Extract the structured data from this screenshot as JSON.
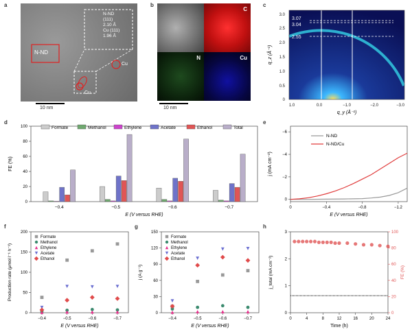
{
  "panel_labels": {
    "a": "a",
    "b": "b",
    "c": "c",
    "d": "d",
    "e": "e",
    "f": "f",
    "g": "g",
    "h": "h"
  },
  "panel_a": {
    "region_label": "N-ND",
    "inset_lines": [
      "N-ND",
      "(111)",
      "2.10 Å",
      "Cu (111)",
      "1.96 Å"
    ],
    "cu_labels": [
      "Cu",
      "Cu"
    ],
    "scale_bar": "10 nm"
  },
  "panel_b": {
    "labels": {
      "c": "C",
      "n": "N",
      "cu": "Cu"
    },
    "scale_bar": "10 nm",
    "colors": {
      "haadf": "#9a9a9a",
      "c": "#d81a1a",
      "n": "#0f2a0f",
      "cu": "#06063a"
    }
  },
  "panel_c": {
    "ring_labels": [
      "3.07",
      "3.04",
      "2.55"
    ],
    "xlabel": "q_y (Å⁻¹)",
    "ylabel": "q_z (Å⁻¹)",
    "xticks": [
      "1.0",
      "0.0",
      "−1.0",
      "−2.0",
      "−3.0"
    ],
    "yticks": [
      "0",
      "0.5",
      "1.0",
      "1.5",
      "2.0",
      "2.5",
      "3.0"
    ]
  },
  "chart_data": [
    {
      "panel": "d",
      "type": "bar",
      "categories": [
        "−0.4",
        "−0.5",
        "−0.6",
        "−0.7"
      ],
      "xlabel": "E (V versus RHE)",
      "ylabel": "FE (%)",
      "ylim": [
        0,
        100
      ],
      "yticks": [
        "0",
        "20",
        "40",
        "60",
        "80",
        "100"
      ],
      "series": [
        {
          "name": "Formate",
          "values": [
            13,
            20,
            18,
            15
          ],
          "color": "#cccccc"
        },
        {
          "name": "Methanol",
          "values": [
            1,
            3,
            3,
            2
          ],
          "color": "#6fa86f"
        },
        {
          "name": "Ethylene",
          "values": [
            0.5,
            1,
            1,
            1
          ],
          "color": "#cc44cc"
        },
        {
          "name": "Acetate",
          "values": [
            19,
            34,
            31,
            24
          ],
          "color": "#6f73c9"
        },
        {
          "name": "Ethanol",
          "values": [
            9,
            28,
            27,
            19
          ],
          "color": "#e05555"
        },
        {
          "name": "Total",
          "values": [
            42,
            89,
            83,
            63
          ],
          "color": "#b9aec9"
        }
      ]
    },
    {
      "panel": "e",
      "type": "line",
      "xlabel": "E (V versus RHE)",
      "ylabel": "j (mA cm⁻²)",
      "xlim": [
        0,
        -1.3
      ],
      "ylim": [
        0.2,
        -6.5
      ],
      "xticks": [
        "0",
        "−0.4",
        "−0.8",
        "−1.2"
      ],
      "yticks": [
        "0",
        "−2",
        "−4",
        "−6"
      ],
      "series": [
        {
          "name": "N-ND",
          "color": "#999999",
          "x": [
            0,
            -0.2,
            -0.4,
            -0.6,
            -0.8,
            -0.9,
            -1.0,
            -1.1,
            -1.2,
            -1.3
          ],
          "y": [
            0,
            0,
            -0.02,
            -0.04,
            -0.07,
            -0.12,
            -0.2,
            -0.35,
            -0.6,
            -1.0
          ]
        },
        {
          "name": "N-ND/Cu",
          "color": "#e03b3b",
          "x": [
            0,
            -0.1,
            -0.2,
            -0.3,
            -0.4,
            -0.5,
            -0.6,
            -0.7,
            -0.8,
            -0.9,
            -1.0,
            -1.1,
            -1.2,
            -1.3
          ],
          "y": [
            0,
            -0.05,
            -0.15,
            -0.3,
            -0.5,
            -0.75,
            -1.05,
            -1.4,
            -1.8,
            -2.2,
            -2.7,
            -3.2,
            -3.7,
            -4.1
          ]
        }
      ]
    },
    {
      "panel": "f",
      "type": "scatter",
      "categories": [
        "−0.4",
        "−0.5",
        "−0.6",
        "−0.7"
      ],
      "xlabel": "E (V versus RHE)",
      "ylabel": "Production rate (μmol l⁻¹ h⁻¹)",
      "ylim": [
        0,
        200
      ],
      "yticks": [
        "0",
        "50",
        "100",
        "150",
        "200"
      ],
      "series": [
        {
          "name": "Formate",
          "marker": "square",
          "color": "#999999",
          "values": [
            38,
            130,
            153,
            170
          ]
        },
        {
          "name": "Methanol",
          "marker": "circle",
          "color": "#3a8a6e",
          "values": [
            3,
            6,
            8,
            7
          ]
        },
        {
          "name": "Ethylene",
          "marker": "triangle-up",
          "color": "#e62d8a",
          "values": [
            1,
            2,
            2,
            2
          ]
        },
        {
          "name": "Acetate",
          "marker": "triangle-down",
          "color": "#6b6fd1",
          "values": [
            13,
            65,
            64,
            65
          ]
        },
        {
          "name": "Ethanol",
          "marker": "diamond",
          "color": "#e04a4a",
          "values": [
            7,
            31,
            38,
            35
          ]
        }
      ]
    },
    {
      "panel": "g",
      "type": "scatter",
      "categories": [
        "−0.4",
        "−0.5",
        "−0.6",
        "−0.7"
      ],
      "xlabel": "E (V versus RHE)",
      "ylabel": "j (A g⁻¹)",
      "ylim": [
        0,
        150
      ],
      "yticks": [
        "0",
        "30",
        "60",
        "90",
        "120",
        "150"
      ],
      "series": [
        {
          "name": "Formate",
          "marker": "square",
          "color": "#999999",
          "values": [
            12,
            58,
            70,
            78
          ]
        },
        {
          "name": "Methanol",
          "marker": "circle",
          "color": "#3a8a6e",
          "values": [
            7,
            10,
            13,
            10
          ]
        },
        {
          "name": "Ethylene",
          "marker": "triangle-up",
          "color": "#e62d8a",
          "values": [
            1,
            2,
            2,
            2
          ]
        },
        {
          "name": "Acetate",
          "marker": "triangle-down",
          "color": "#6b6fd1",
          "values": [
            22,
            101,
            118,
            119
          ]
        },
        {
          "name": "Ethanol",
          "marker": "diamond",
          "color": "#e04a4a",
          "values": [
            12,
            88,
            103,
            97
          ]
        }
      ]
    },
    {
      "panel": "h",
      "type": "scatter",
      "xlabel": "Time (h)",
      "ylabel_left": "j_total (mA cm⁻²)",
      "ylabel_right": "FE (%)",
      "xlim": [
        0,
        24
      ],
      "ylim_left": [
        0,
        3
      ],
      "ylim_right": [
        0,
        100
      ],
      "xticks": [
        "0",
        "4",
        "8",
        "12",
        "16",
        "20",
        "24"
      ],
      "yticks_left": [
        "0",
        "1",
        "2",
        "3"
      ],
      "yticks_right": [
        "0",
        "20",
        "40",
        "60",
        "80",
        "100"
      ],
      "series": [
        {
          "name": "current",
          "axis": "left",
          "color": "#555555",
          "x": [
            0,
            24
          ],
          "y": [
            0.63,
            0.63
          ]
        },
        {
          "name": "FE",
          "axis": "right",
          "color": "#e05555",
          "x": [
            1,
            2,
            3,
            4,
            5,
            6,
            7,
            8,
            9,
            10,
            11,
            12,
            14,
            16,
            18,
            20,
            22,
            24
          ],
          "y": [
            88,
            88,
            88,
            88,
            88,
            88,
            87,
            87,
            87,
            87,
            86,
            86,
            86,
            85,
            84,
            84,
            83,
            82
          ]
        }
      ]
    }
  ]
}
